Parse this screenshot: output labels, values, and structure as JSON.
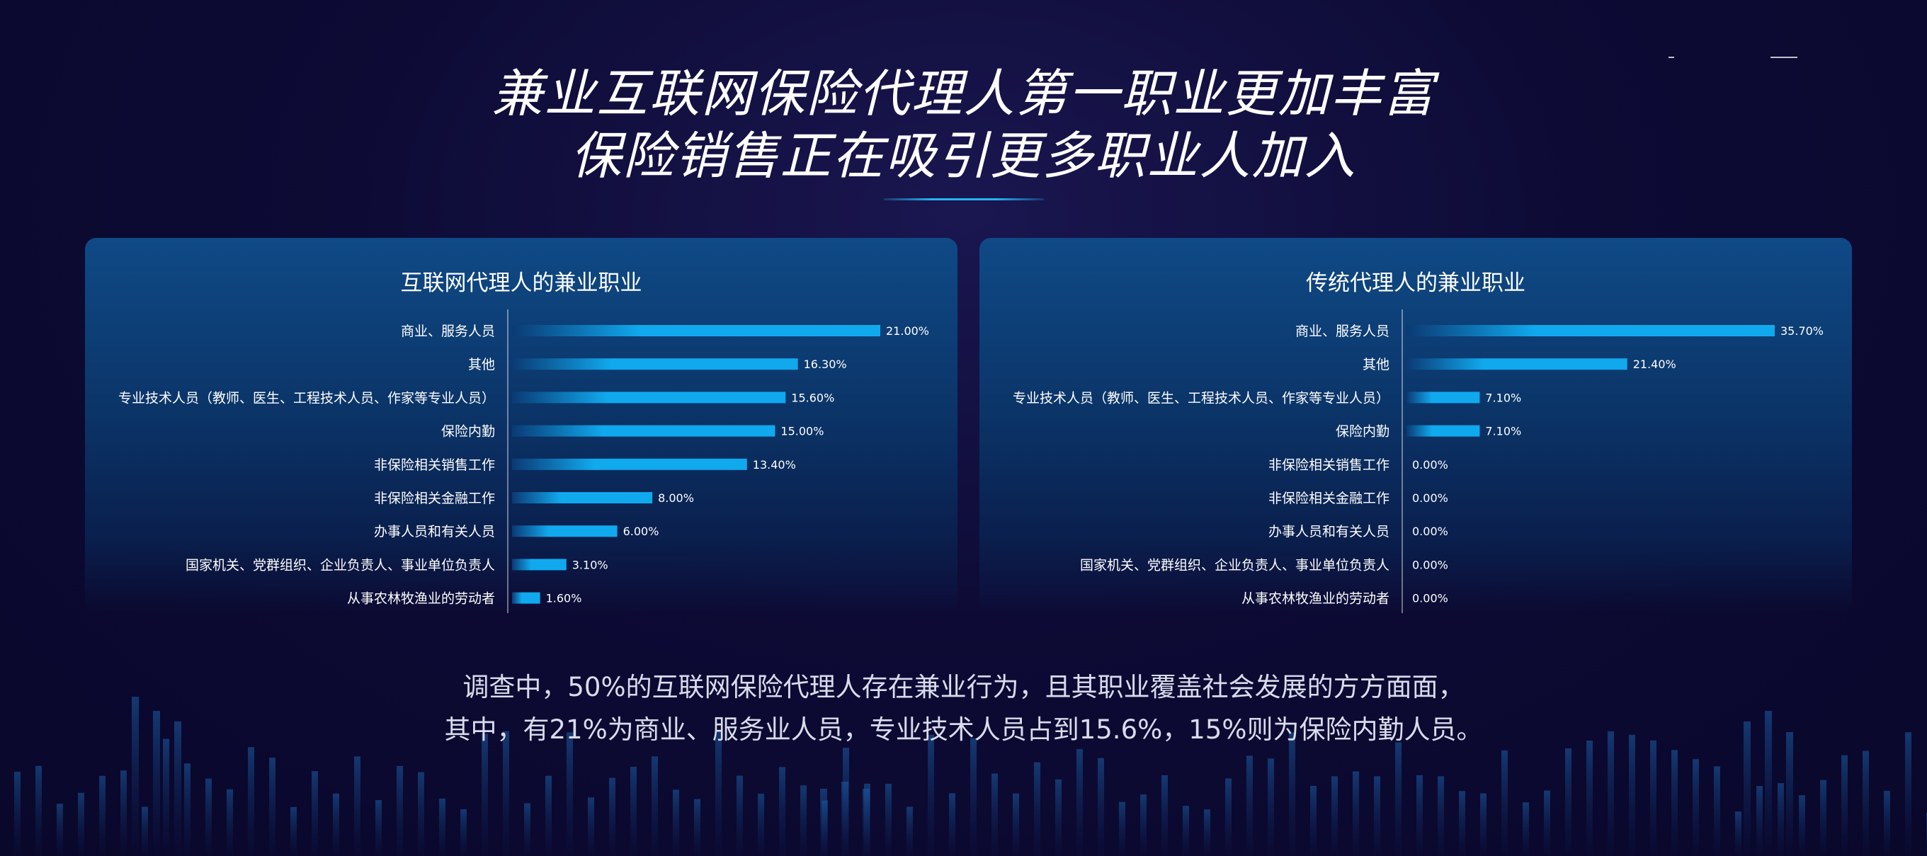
{
  "header": {
    "title_line1": "兼业互联网保险代理人第一职业更加丰富",
    "title_line2": "保险销售正在吸引更多职业人加入"
  },
  "colors": {
    "bar": "#10a9ee",
    "bar_fade": "#0b3a74",
    "accent_line": "#26b4f5",
    "text": "#ffffff"
  },
  "chart_data": [
    {
      "type": "bar",
      "orientation": "horizontal",
      "title": "互联网代理人的兼业职业",
      "categories": [
        "商业、服务人员",
        "其他",
        "专业技术人员（教师、医生、工程技术人员、作家等专业人员）",
        "保险内勤",
        "非保险相关销售工作",
        "非保险相关金融工作",
        "办事人员和有关人员",
        "国家机关、党群组织、企业负责人、事业单位负责人",
        "从事农林牧渔业的劳动者"
      ],
      "values": [
        21.0,
        16.3,
        15.6,
        15.0,
        13.4,
        8.0,
        6.0,
        3.1,
        1.6
      ],
      "value_labels": [
        "21.00%",
        "16.30%",
        "15.60%",
        "15.00%",
        "13.40%",
        "8.00%",
        "6.00%",
        "3.10%",
        "1.60%"
      ],
      "xlim": [
        0,
        21.0
      ]
    },
    {
      "type": "bar",
      "orientation": "horizontal",
      "title": "传统代理人的兼业职业",
      "categories": [
        "商业、服务人员",
        "其他",
        "专业技术人员（教师、医生、工程技术人员、作家等专业人员）",
        "保险内勤",
        "非保险相关销售工作",
        "非保险相关金融工作",
        "办事人员和有关人员",
        "国家机关、党群组织、企业负责人、事业单位负责人",
        "从事农林牧渔业的劳动者"
      ],
      "values": [
        35.7,
        21.4,
        7.1,
        7.1,
        0.0,
        0.0,
        0.0,
        0.0,
        0.0
      ],
      "value_labels": [
        "35.70%",
        "21.40%",
        "7.10%",
        "7.10%",
        "0.00%",
        "0.00%",
        "0.00%",
        "0.00%",
        "0.00%"
      ],
      "xlim": [
        0,
        35.7
      ]
    }
  ],
  "summary": {
    "line1": "调查中，50%的互联网保险代理人存在兼业行为，且其职业覆盖社会发展的方方面面，",
    "line2": "其中，有21%为商业、服务业人员，专业技术人员占到15.6%，15%则为保险内勤人员。"
  }
}
